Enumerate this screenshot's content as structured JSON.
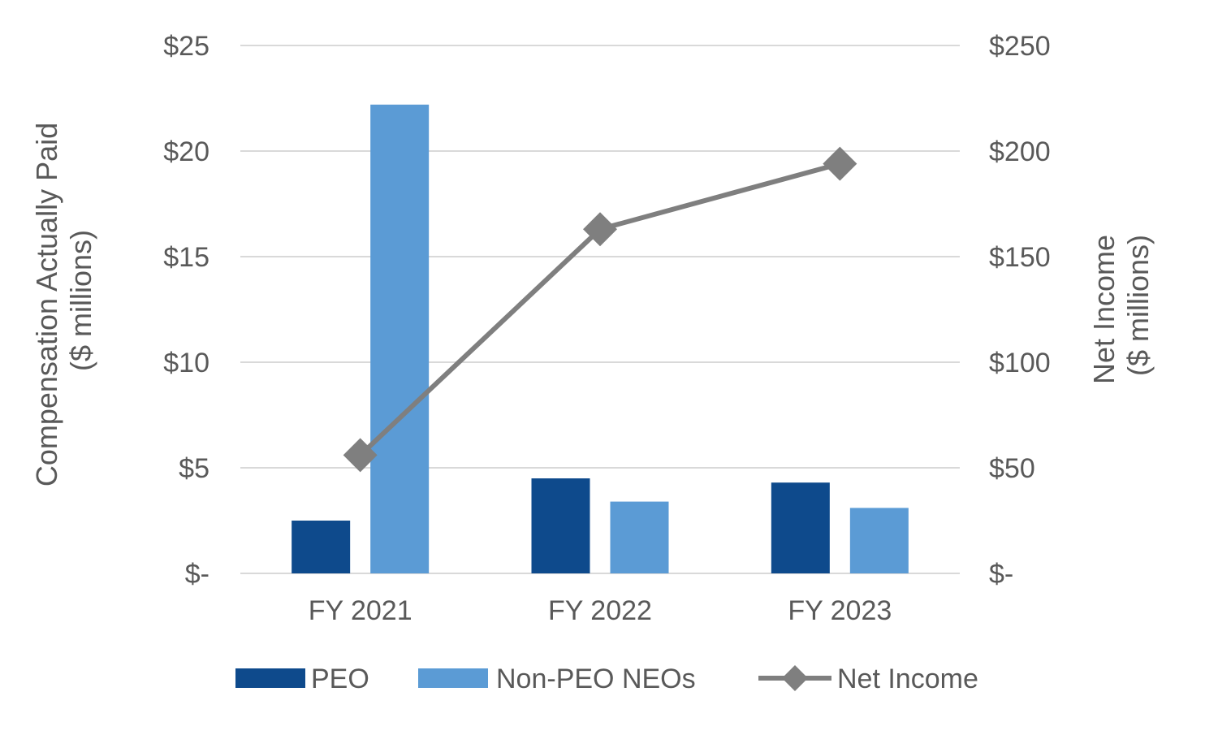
{
  "chart_data": {
    "type": "bar",
    "categories": [
      "FY 2021",
      "FY 2022",
      "FY 2023"
    ],
    "series": [
      {
        "name": "PEO",
        "kind": "bar",
        "axis": "left",
        "color": "#0E4A8C",
        "values": [
          2.5,
          4.5,
          4.3
        ]
      },
      {
        "name": "Non-PEO NEOs",
        "kind": "bar",
        "axis": "left",
        "color": "#5B9BD5",
        "values": [
          22.2,
          3.4,
          3.1
        ]
      },
      {
        "name": "Net Income",
        "kind": "line",
        "marker": "diamond",
        "axis": "right",
        "color": "#7F7F7F",
        "values": [
          56,
          163,
          194
        ]
      }
    ],
    "y_left": {
      "label_line1": "Compensation Actually Paid",
      "label_line2": "($ millions)",
      "ylim": [
        0,
        25
      ],
      "ticks": [
        0,
        5,
        10,
        15,
        20,
        25
      ],
      "tick_labels": [
        "$-",
        "$5",
        "$10",
        "$15",
        "$20",
        "$25"
      ]
    },
    "y_right": {
      "label_line1": "Net Income",
      "label_line2": "($ millions)",
      "ylim": [
        0,
        250
      ],
      "ticks": [
        0,
        50,
        100,
        150,
        200,
        250
      ],
      "tick_labels": [
        "$-",
        "$50",
        "$100",
        "$150",
        "$200",
        "$250"
      ]
    },
    "grid": true,
    "legend": "bottom",
    "colors": {
      "gridline": "#D9D9D9",
      "text": "#595959"
    }
  }
}
